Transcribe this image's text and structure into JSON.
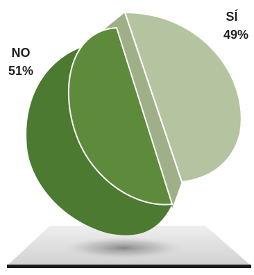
{
  "chart_data": {
    "type": "pie",
    "categories": [
      "SÍ",
      "NO"
    ],
    "values": [
      49,
      51
    ],
    "labels": [
      "49%",
      "51%"
    ],
    "colors": {
      "si_face": "#b5c4a0",
      "si_side": "#9fb088",
      "no_face": "#5e8a3c",
      "no_side": "#4c7a30"
    }
  }
}
